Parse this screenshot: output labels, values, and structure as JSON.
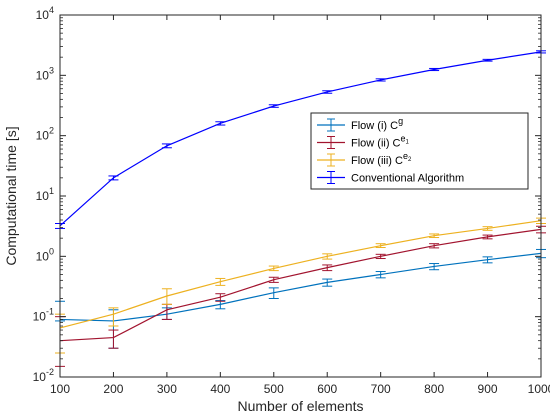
{
  "chart_data": {
    "type": "line",
    "xlabel": "Number of elements",
    "ylabel": "Computational time [s]",
    "yscale": "log",
    "xlim": [
      100,
      1000
    ],
    "ylim": [
      0.01,
      10000
    ],
    "x_ticks": [
      "100",
      "200",
      "300",
      "400",
      "500",
      "600",
      "700",
      "800",
      "900",
      "1000"
    ],
    "y_ticks": [
      {
        "value": 0.01,
        "base": "10",
        "exp": "-2"
      },
      {
        "value": 0.1,
        "base": "10",
        "exp": "-1"
      },
      {
        "value": 1,
        "base": "10",
        "exp": "0"
      },
      {
        "value": 10,
        "base": "10",
        "exp": "1"
      },
      {
        "value": 100,
        "base": "10",
        "exp": "2"
      },
      {
        "value": 1000,
        "base": "10",
        "exp": "3"
      },
      {
        "value": 10000,
        "base": "10",
        "exp": "4"
      }
    ],
    "grid": false,
    "legend_position": "center-right",
    "x": [
      100,
      200,
      300,
      400,
      500,
      600,
      700,
      800,
      900,
      1000
    ],
    "series": [
      {
        "name_main": "Flow (i) C",
        "name_sup": "g",
        "name_sub": "",
        "color": "#0072BD",
        "values": [
          0.09,
          0.085,
          0.11,
          0.16,
          0.25,
          0.37,
          0.5,
          0.68,
          0.88,
          1.12
        ],
        "err_low": [
          0.085,
          0.03,
          0.09,
          0.135,
          0.2,
          0.32,
          0.44,
          0.6,
          0.78,
          0.95
        ],
        "err_high": [
          0.18,
          0.13,
          0.14,
          0.185,
          0.3,
          0.42,
          0.56,
          0.76,
          0.98,
          1.3
        ]
      },
      {
        "name_main": "Flow (ii) C",
        "name_sup": "e",
        "name_sub": "1",
        "color": "#A2142F",
        "values": [
          0.04,
          0.045,
          0.13,
          0.21,
          0.41,
          0.65,
          1.0,
          1.5,
          2.1,
          2.8
        ],
        "err_low": [
          0.015,
          0.03,
          0.09,
          0.18,
          0.37,
          0.58,
          0.92,
          1.38,
          1.95,
          2.45
        ],
        "err_high": [
          0.1,
          0.06,
          0.16,
          0.24,
          0.45,
          0.72,
          1.08,
          1.62,
          2.25,
          3.15
        ]
      },
      {
        "name_main": "Flow (iii) C",
        "name_sup": "e",
        "name_sub": "2",
        "color": "#EDB120",
        "values": [
          0.065,
          0.11,
          0.22,
          0.38,
          0.63,
          1.0,
          1.5,
          2.2,
          2.9,
          3.9
        ],
        "err_low": [
          0.025,
          0.07,
          0.16,
          0.33,
          0.58,
          0.9,
          1.4,
          2.05,
          2.7,
          3.5
        ],
        "err_high": [
          0.11,
          0.14,
          0.29,
          0.43,
          0.69,
          1.1,
          1.62,
          2.35,
          3.1,
          4.3
        ]
      },
      {
        "name_main": "Conventional Algorithm",
        "name_sup": "",
        "name_sub": "",
        "color": "#0000FF",
        "values": [
          3.2,
          20,
          68,
          160,
          310,
          530,
          840,
          1250,
          1780,
          2450
        ],
        "err_low": [
          2.9,
          18.5,
          63,
          150,
          295,
          505,
          805,
          1200,
          1720,
          2350
        ],
        "err_high": [
          3.5,
          21.5,
          73,
          170,
          325,
          555,
          875,
          1300,
          1840,
          2550
        ]
      }
    ]
  }
}
